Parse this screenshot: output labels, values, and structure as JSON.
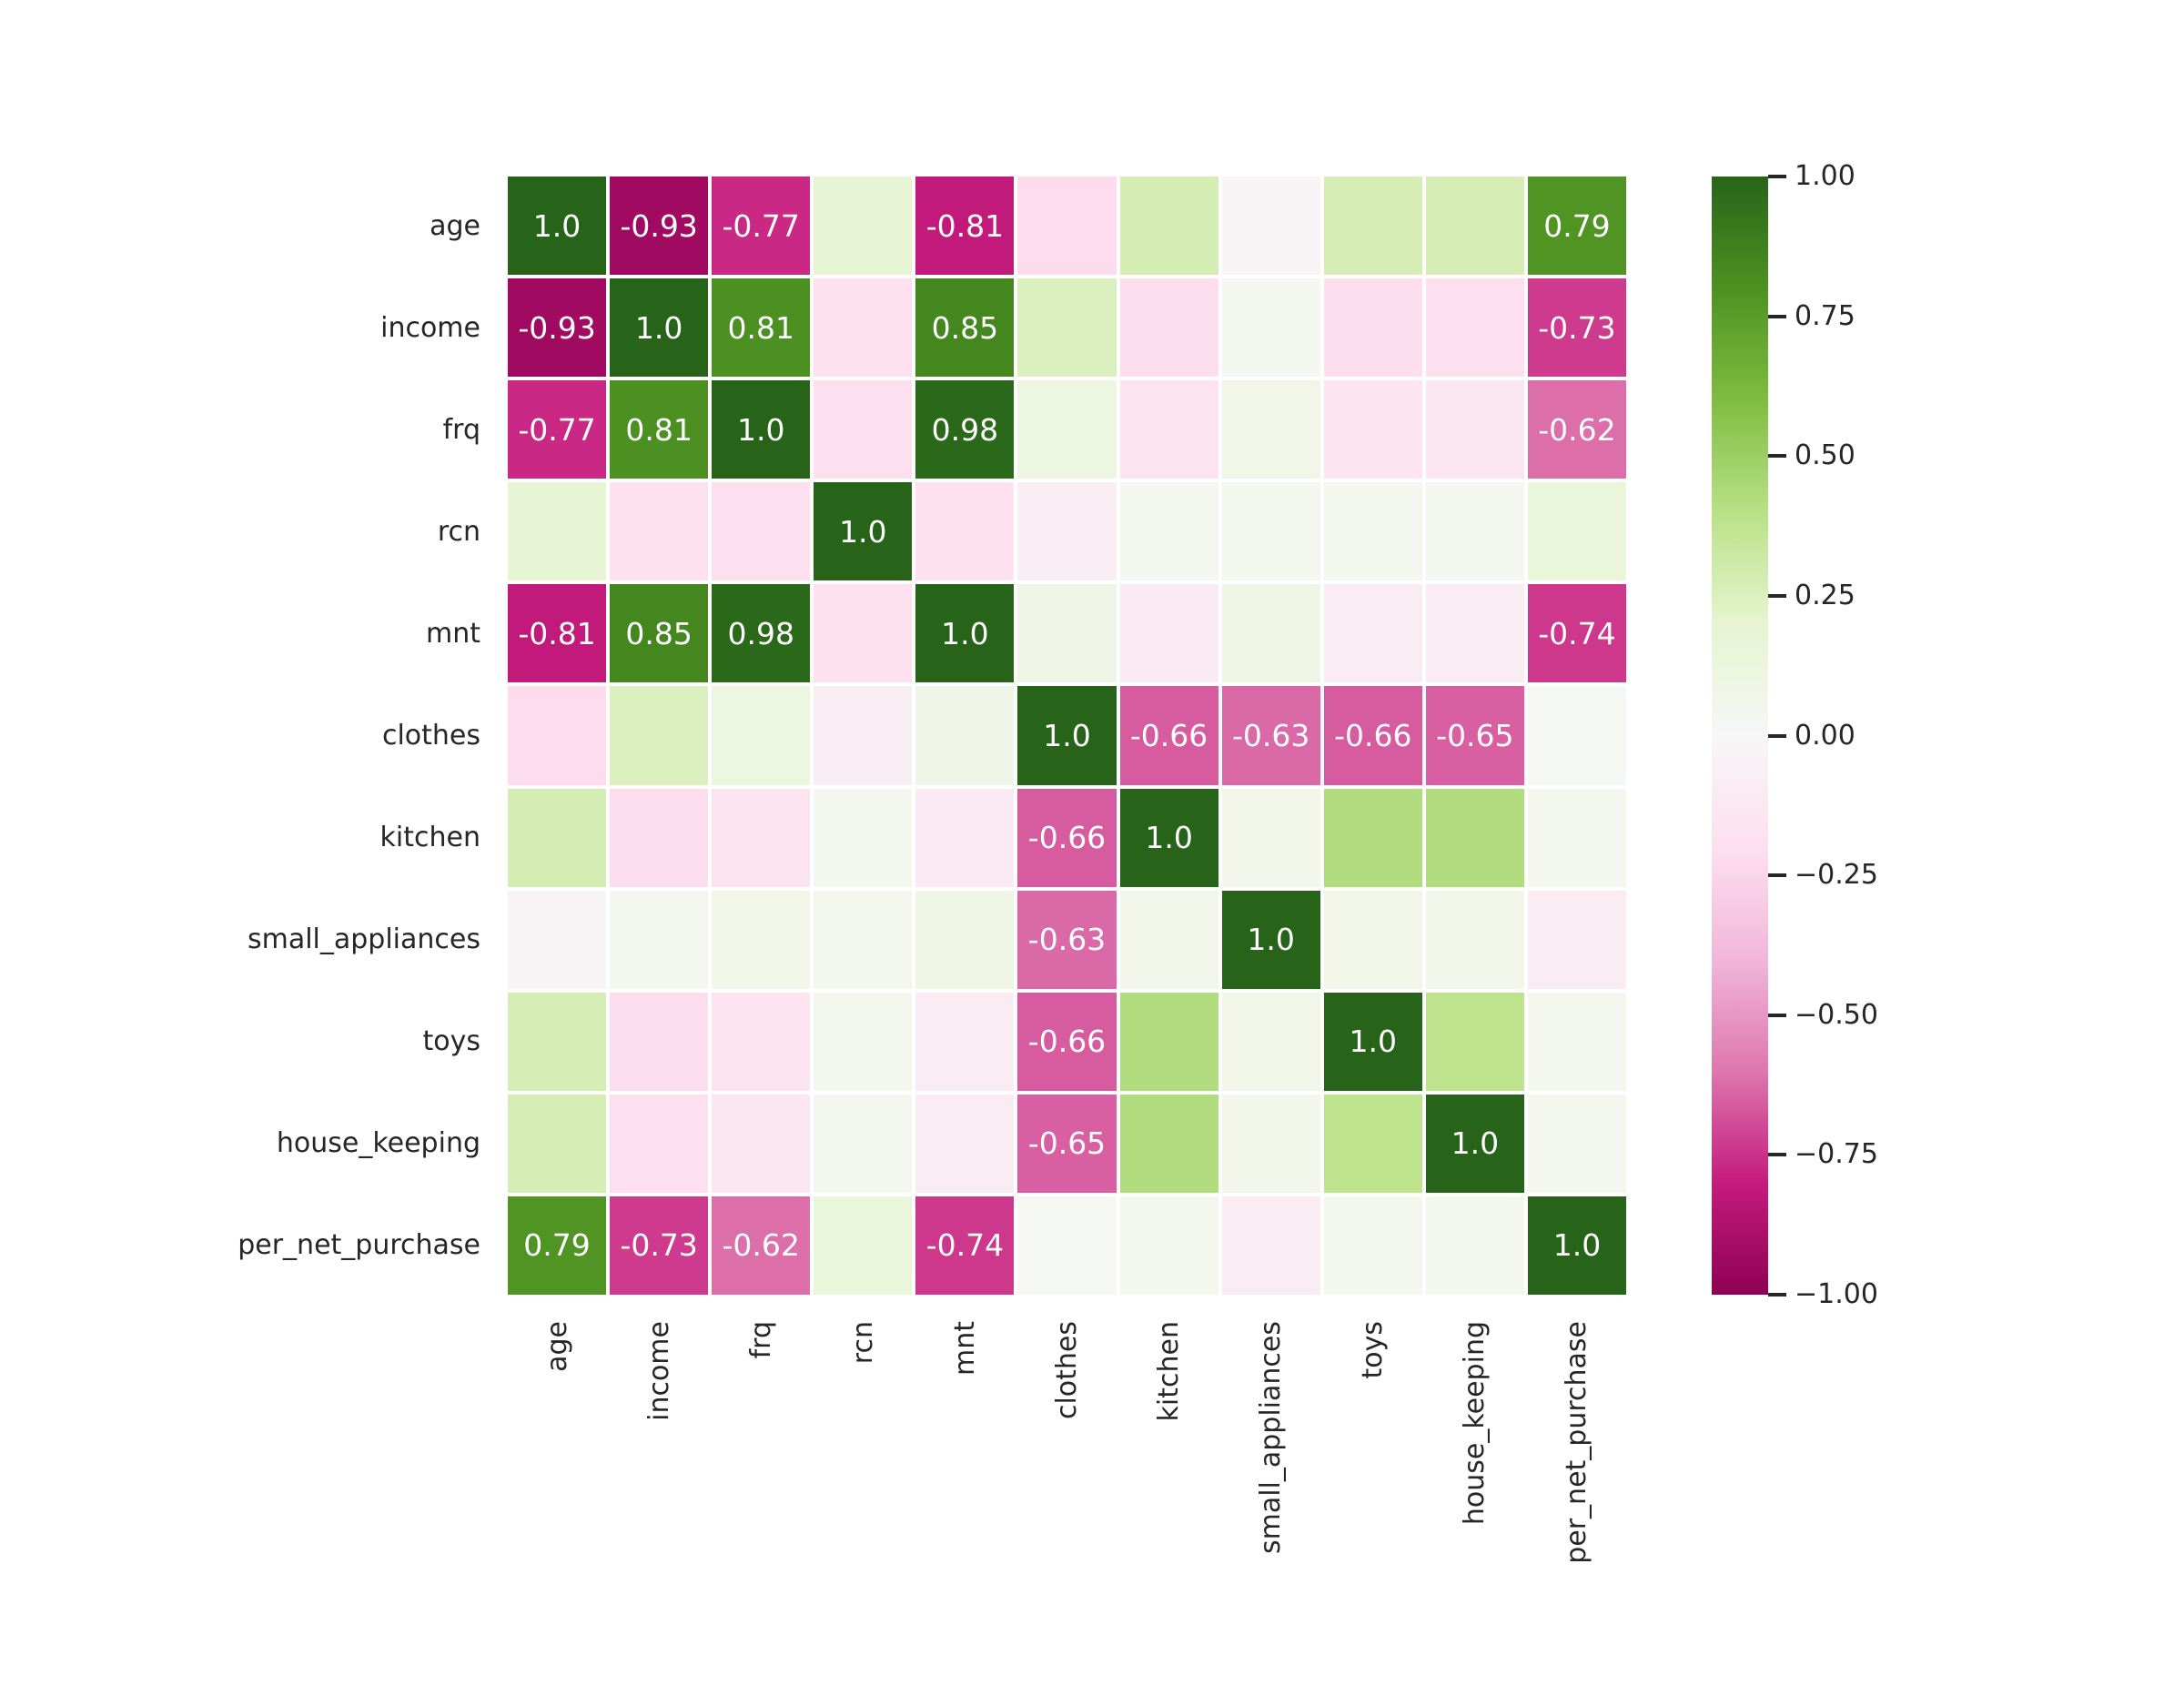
{
  "figure": {
    "background_color": "#ffffff",
    "label_color": "#262626",
    "annotation_color": "#ffffff",
    "gridline_color": "#ffffff"
  },
  "chart_data": {
    "type": "heatmap",
    "title": "",
    "legend_position": "right-colorbar",
    "grid": "off",
    "labels": [
      "age",
      "income",
      "frq",
      "rcn",
      "mnt",
      "clothes",
      "kitchen",
      "small_appliances",
      "toys",
      "house_keeping",
      "per_net_purchase"
    ],
    "matrix": [
      [
        1.0,
        -0.93,
        -0.77,
        0.18,
        -0.81,
        -0.22,
        0.28,
        -0.03,
        0.27,
        0.27,
        0.79
      ],
      [
        -0.93,
        1.0,
        0.81,
        -0.19,
        0.85,
        0.25,
        -0.21,
        0.04,
        -0.21,
        -0.2,
        -0.73
      ],
      [
        -0.77,
        0.81,
        1.0,
        -0.2,
        0.98,
        0.12,
        -0.17,
        0.07,
        -0.16,
        -0.15,
        -0.62
      ],
      [
        0.18,
        -0.19,
        -0.2,
        1.0,
        -0.19,
        -0.08,
        0.04,
        0.05,
        0.05,
        0.04,
        0.15
      ],
      [
        -0.81,
        0.85,
        0.98,
        -0.19,
        1.0,
        0.08,
        -0.11,
        0.1,
        -0.1,
        -0.1,
        -0.74
      ],
      [
        -0.22,
        0.25,
        0.12,
        -0.08,
        0.08,
        1.0,
        -0.66,
        -0.63,
        -0.66,
        -0.65,
        0.02
      ],
      [
        0.28,
        -0.21,
        -0.17,
        0.04,
        -0.11,
        -0.66,
        1.0,
        0.06,
        0.42,
        0.42,
        0.05
      ],
      [
        -0.03,
        0.04,
        0.07,
        0.05,
        0.1,
        -0.63,
        0.06,
        1.0,
        0.07,
        0.06,
        -0.1
      ],
      [
        0.27,
        -0.21,
        -0.16,
        0.05,
        -0.1,
        -0.66,
        0.42,
        0.07,
        1.0,
        0.38,
        0.05
      ],
      [
        0.27,
        -0.2,
        -0.15,
        0.04,
        -0.1,
        -0.65,
        0.42,
        0.06,
        0.38,
        1.0,
        0.05
      ],
      [
        0.79,
        -0.73,
        -0.62,
        0.15,
        -0.74,
        0.02,
        0.05,
        -0.1,
        0.05,
        0.05,
        1.0
      ]
    ],
    "annotation_threshold": 0.6,
    "value_range": [
      -1.0,
      1.0
    ],
    "colormap_name": "PiYG",
    "colormap_stops": [
      {
        "value": -1.0,
        "color": "#8e0152"
      },
      {
        "value": -0.8,
        "color": "#c51b7d"
      },
      {
        "value": -0.6,
        "color": "#de77ae"
      },
      {
        "value": -0.4,
        "color": "#f1b6da"
      },
      {
        "value": -0.2,
        "color": "#fde0ef"
      },
      {
        "value": 0.0,
        "color": "#f7f7f7"
      },
      {
        "value": 0.2,
        "color": "#e6f5d0"
      },
      {
        "value": 0.4,
        "color": "#b8e186"
      },
      {
        "value": 0.6,
        "color": "#7fbc41"
      },
      {
        "value": 0.8,
        "color": "#4d9221"
      },
      {
        "value": 1.0,
        "color": "#276419"
      }
    ],
    "colorbar_ticks": [
      {
        "label": "1.00",
        "value": 1.0
      },
      {
        "label": "0.75",
        "value": 0.75
      },
      {
        "label": "0.50",
        "value": 0.5
      },
      {
        "label": "0.25",
        "value": 0.25
      },
      {
        "label": "0.00",
        "value": 0.0
      },
      {
        "label": "−0.25",
        "value": -0.25
      },
      {
        "label": "−0.50",
        "value": -0.5
      },
      {
        "label": "−0.75",
        "value": -0.75
      },
      {
        "label": "−1.00",
        "value": -1.0
      }
    ]
  }
}
